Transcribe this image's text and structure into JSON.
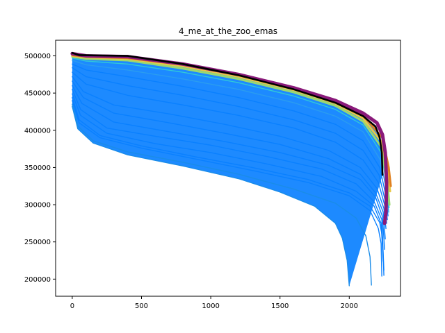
{
  "chart_data": {
    "type": "line",
    "title": "4_me_at_the_zoo_emas",
    "xlabel": "",
    "ylabel": "",
    "xlim": [
      -120,
      2370
    ],
    "ylim": [
      177000,
      521000
    ],
    "xticks": [
      0,
      500,
      1000,
      1500,
      2000
    ],
    "yticks": [
      200000,
      250000,
      300000,
      350000,
      400000,
      450000,
      500000
    ],
    "grid": false,
    "legend": "none",
    "colors": {
      "blue_base": "#0a80ff",
      "teal": "#30c8d8",
      "green": "#9ad870",
      "yellow": "#e8c848",
      "orange": "#e08020",
      "magenta": "#8a1a7a",
      "black": "#000000"
    },
    "series": [
      {
        "color": "#1a8ce8",
        "values": [
          [
            0,
            432000
          ],
          [
            40,
            402000
          ],
          [
            150,
            383000
          ],
          [
            400,
            367000
          ],
          [
            800,
            352000
          ],
          [
            1200,
            335000
          ],
          [
            1500,
            317000
          ],
          [
            1750,
            298000
          ],
          [
            1900,
            275000
          ],
          [
            1950,
            255000
          ],
          [
            1985,
            225000
          ],
          [
            2000,
            191000
          ]
        ]
      },
      {
        "color": "#1a8ce8",
        "values": [
          [
            0,
            435000
          ],
          [
            40,
            406000
          ],
          [
            150,
            386000
          ],
          [
            400,
            371000
          ],
          [
            800,
            357000
          ],
          [
            1200,
            341000
          ],
          [
            1600,
            321000
          ],
          [
            1900,
            302000
          ],
          [
            2050,
            282000
          ],
          [
            2120,
            258000
          ],
          [
            2150,
            230000
          ],
          [
            2160,
            192000
          ]
        ]
      },
      {
        "color": "#0a80ff",
        "values": [
          [
            0,
            440000
          ],
          [
            50,
            410000
          ],
          [
            200,
            390000
          ],
          [
            500,
            376000
          ],
          [
            900,
            361000
          ],
          [
            1300,
            346000
          ],
          [
            1700,
            330000
          ],
          [
            2000,
            312000
          ],
          [
            2150,
            292000
          ],
          [
            2210,
            268000
          ],
          [
            2230,
            248000
          ],
          [
            2235,
            204000
          ]
        ]
      },
      {
        "color": "#0a80ff",
        "values": [
          [
            0,
            444000
          ],
          [
            50,
            414000
          ],
          [
            200,
            393000
          ],
          [
            500,
            379000
          ],
          [
            900,
            364000
          ],
          [
            1300,
            350000
          ],
          [
            1700,
            334000
          ],
          [
            2000,
            316000
          ],
          [
            2150,
            298000
          ],
          [
            2220,
            276000
          ],
          [
            2240,
            256000
          ],
          [
            2250,
            205000
          ]
        ]
      },
      {
        "color": "#0a80ff",
        "values": [
          [
            0,
            449000
          ],
          [
            60,
            420000
          ],
          [
            250,
            396000
          ],
          [
            600,
            382000
          ],
          [
            1000,
            370000
          ],
          [
            1400,
            355000
          ],
          [
            1800,
            338000
          ],
          [
            2050,
            318000
          ],
          [
            2180,
            298000
          ],
          [
            2230,
            275000
          ],
          [
            2245,
            224000
          ]
        ]
      },
      {
        "color": "#0a80ff",
        "values": [
          [
            0,
            455000
          ],
          [
            60,
            428000
          ],
          [
            250,
            403000
          ],
          [
            600,
            392000
          ],
          [
            1000,
            380000
          ],
          [
            1400,
            365000
          ],
          [
            1800,
            348000
          ],
          [
            2050,
            328000
          ],
          [
            2180,
            304000
          ],
          [
            2235,
            280000
          ],
          [
            2250,
            212000
          ]
        ]
      },
      {
        "color": "#0a80ff",
        "values": [
          [
            0,
            460000
          ],
          [
            70,
            436000
          ],
          [
            300,
            411000
          ],
          [
            700,
            398000
          ],
          [
            1100,
            385000
          ],
          [
            1500,
            370000
          ],
          [
            1850,
            353000
          ],
          [
            2080,
            334000
          ],
          [
            2190,
            310000
          ],
          [
            2240,
            284000
          ],
          [
            2255,
            240000
          ]
        ]
      },
      {
        "color": "#0a80ff",
        "values": [
          [
            0,
            466000
          ],
          [
            80,
            444000
          ],
          [
            300,
            423000
          ],
          [
            700,
            410000
          ],
          [
            1100,
            396000
          ],
          [
            1500,
            381000
          ],
          [
            1850,
            362000
          ],
          [
            2080,
            341000
          ],
          [
            2190,
            316000
          ],
          [
            2245,
            290000
          ],
          [
            2260,
            254000
          ]
        ]
      },
      {
        "color": "#0a80ff",
        "values": [
          [
            0,
            472000
          ],
          [
            80,
            452000
          ],
          [
            300,
            434000
          ],
          [
            700,
            422000
          ],
          [
            1100,
            408000
          ],
          [
            1500,
            392000
          ],
          [
            1850,
            373000
          ],
          [
            2080,
            350000
          ],
          [
            2200,
            322000
          ],
          [
            2250,
            295000
          ],
          [
            2265,
            268000
          ]
        ]
      },
      {
        "color": "#0a80ff",
        "values": [
          [
            0,
            478000
          ],
          [
            100,
            462000
          ],
          [
            400,
            447000
          ],
          [
            800,
            434000
          ],
          [
            1200,
            420000
          ],
          [
            1600,
            403000
          ],
          [
            1900,
            384000
          ],
          [
            2100,
            360000
          ],
          [
            2210,
            330000
          ],
          [
            2255,
            300000
          ],
          [
            2270,
            275000
          ]
        ]
      },
      {
        "color": "#0a80ff",
        "values": [
          [
            0,
            484000
          ],
          [
            100,
            472000
          ],
          [
            400,
            460000
          ],
          [
            800,
            447000
          ],
          [
            1200,
            432000
          ],
          [
            1600,
            414000
          ],
          [
            1900,
            396000
          ],
          [
            2100,
            373000
          ],
          [
            2215,
            340000
          ],
          [
            2260,
            305000
          ],
          [
            2275,
            280000
          ]
        ]
      },
      {
        "color": "#0a80ff",
        "values": [
          [
            0,
            489000
          ],
          [
            100,
            481000
          ],
          [
            400,
            472000
          ],
          [
            800,
            459000
          ],
          [
            1200,
            444000
          ],
          [
            1600,
            426000
          ],
          [
            1900,
            408000
          ],
          [
            2100,
            386000
          ],
          [
            2220,
            350000
          ],
          [
            2265,
            312000
          ],
          [
            2280,
            285000
          ]
        ]
      },
      {
        "color": "#2a9cf0",
        "values": [
          [
            0,
            494000
          ],
          [
            100,
            488000
          ],
          [
            400,
            481000
          ],
          [
            800,
            469000
          ],
          [
            1200,
            455000
          ],
          [
            1600,
            437000
          ],
          [
            1900,
            419000
          ],
          [
            2100,
            398000
          ],
          [
            2225,
            360000
          ],
          [
            2270,
            318000
          ],
          [
            2285,
            290000
          ]
        ]
      },
      {
        "color": "#30c8d8",
        "values": [
          [
            0,
            497000
          ],
          [
            100,
            493000
          ],
          [
            400,
            489000
          ],
          [
            800,
            478000
          ],
          [
            1200,
            464000
          ],
          [
            1600,
            446000
          ],
          [
            1900,
            428000
          ],
          [
            2100,
            407000
          ],
          [
            2230,
            370000
          ],
          [
            2272,
            325000
          ],
          [
            2288,
            296000
          ]
        ]
      },
      {
        "color": "#9ad870",
        "values": [
          [
            0,
            499000
          ],
          [
            100,
            496000
          ],
          [
            400,
            494000
          ],
          [
            800,
            483000
          ],
          [
            1200,
            469000
          ],
          [
            1600,
            451000
          ],
          [
            1900,
            433000
          ],
          [
            2100,
            412000
          ],
          [
            2230,
            378000
          ],
          [
            2275,
            330000
          ],
          [
            2290,
            300000
          ]
        ]
      },
      {
        "color": "#e8c848",
        "values": [
          [
            0,
            500000
          ],
          [
            100,
            498000
          ],
          [
            400,
            496000
          ],
          [
            800,
            486000
          ],
          [
            1200,
            472000
          ],
          [
            1600,
            454000
          ],
          [
            1900,
            436000
          ],
          [
            2100,
            416000
          ],
          [
            2235,
            384000
          ],
          [
            2280,
            342000
          ],
          [
            2295,
            318000
          ]
        ]
      },
      {
        "color": "#e08020",
        "values": [
          [
            0,
            501000
          ],
          [
            100,
            499000
          ],
          [
            400,
            497000
          ],
          [
            800,
            488000
          ],
          [
            1200,
            474000
          ],
          [
            1600,
            456000
          ],
          [
            1900,
            439000
          ],
          [
            2100,
            420000
          ],
          [
            2240,
            390000
          ],
          [
            2285,
            350000
          ],
          [
            2300,
            325000
          ]
        ]
      },
      {
        "color": "#8a1a7a",
        "values": [
          [
            0,
            503000
          ],
          [
            100,
            500000
          ],
          [
            400,
            499000
          ],
          [
            800,
            489000
          ],
          [
            1200,
            475000
          ],
          [
            1600,
            457000
          ],
          [
            1900,
            440000
          ],
          [
            2100,
            423000
          ],
          [
            2200,
            410000
          ],
          [
            2240,
            394000
          ],
          [
            2260,
            370000
          ],
          [
            2270,
            330000
          ],
          [
            2265,
            290000
          ],
          [
            2255,
            275000
          ]
        ]
      },
      {
        "color": "#000000",
        "values": [
          [
            0,
            504000
          ],
          [
            50,
            501000
          ],
          [
            400,
            500000
          ],
          [
            800,
            489000
          ],
          [
            1200,
            474000
          ],
          [
            1600,
            455000
          ],
          [
            1900,
            437000
          ],
          [
            2100,
            419000
          ],
          [
            2190,
            405000
          ],
          [
            2220,
            390000
          ],
          [
            2235,
            370000
          ],
          [
            2240,
            340000
          ]
        ]
      }
    ]
  }
}
